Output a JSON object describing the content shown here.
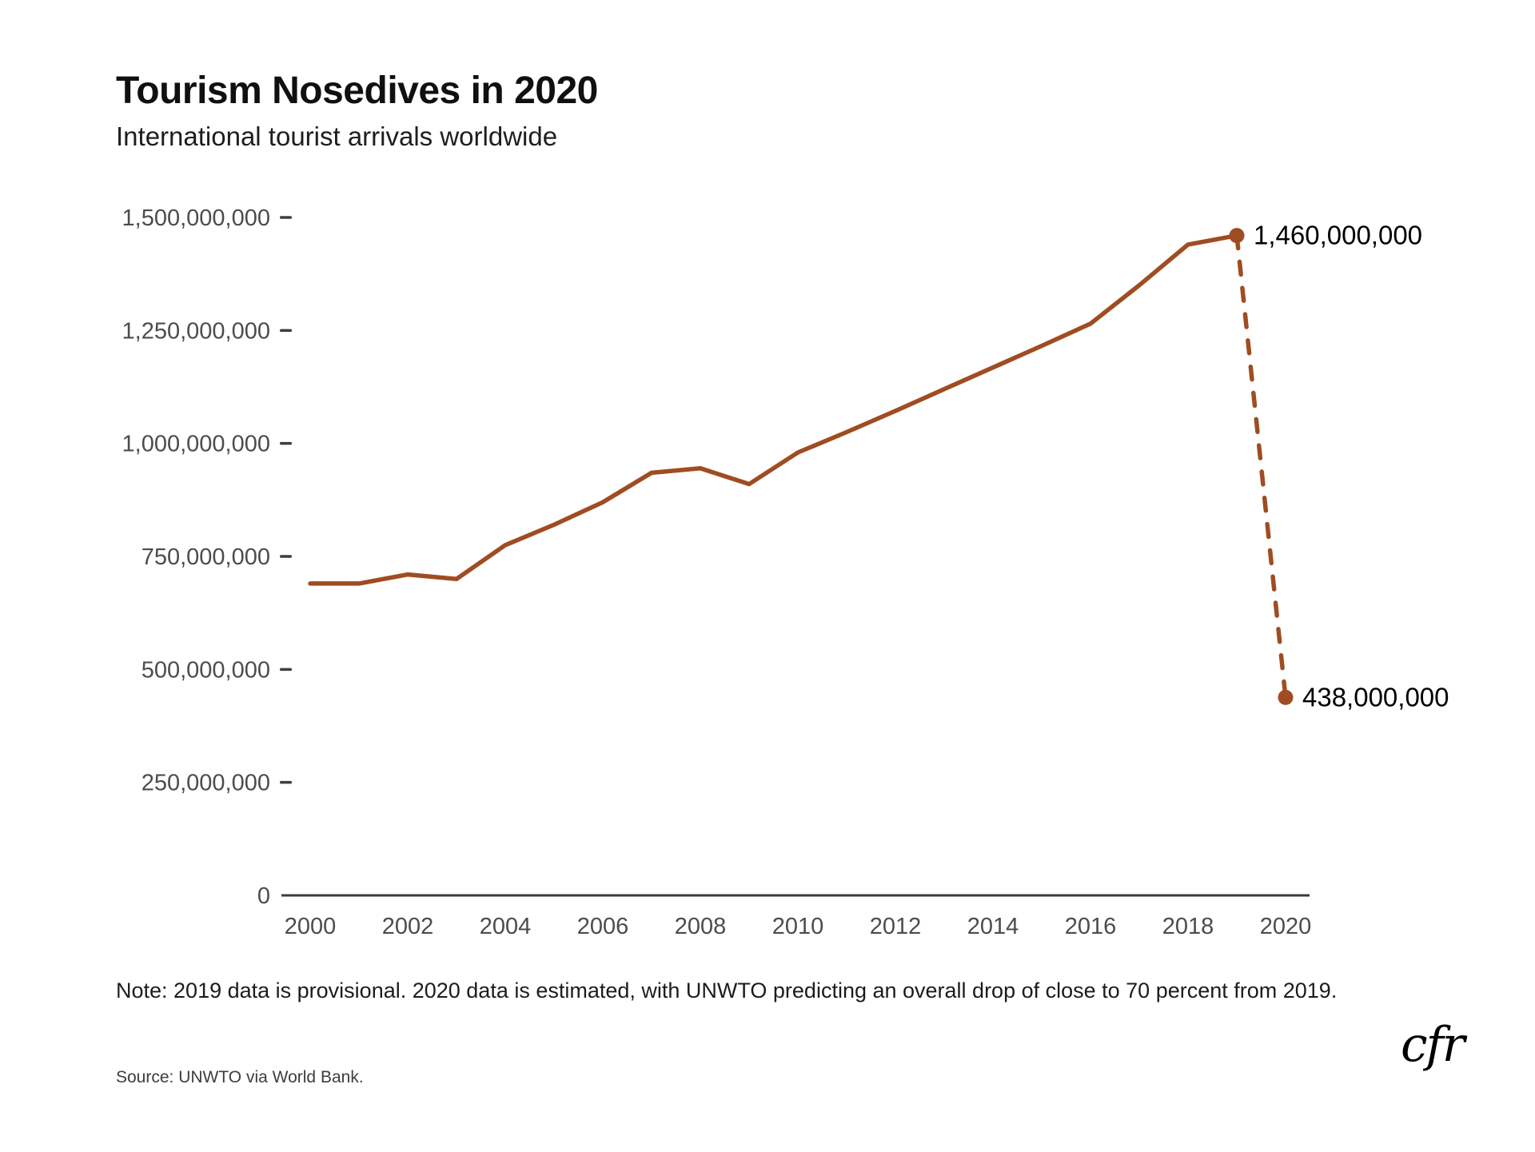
{
  "header": {
    "title": "Tourism Nosedives in 2020",
    "subtitle": "International tourist arrivals worldwide"
  },
  "chart_data": {
    "type": "line",
    "title": "Tourism Nosedives in 2020",
    "subtitle": "International tourist arrivals worldwide",
    "x": [
      2000,
      2001,
      2002,
      2003,
      2004,
      2005,
      2006,
      2007,
      2008,
      2009,
      2010,
      2011,
      2012,
      2013,
      2014,
      2015,
      2016,
      2017,
      2018,
      2019,
      2020
    ],
    "series": [
      {
        "name": "International tourist arrivals worldwide",
        "values": [
          690000000,
          690000000,
          710000000,
          700000000,
          775000000,
          820000000,
          870000000,
          935000000,
          945000000,
          910000000,
          980000000,
          1025000000,
          1072000000,
          1120000000,
          1168000000,
          1216000000,
          1265000000,
          1350000000,
          1440000000,
          1460000000,
          438000000
        ]
      }
    ],
    "solid_segment_years": [
      2000,
      2019
    ],
    "dashed_segment_years": [
      2019,
      2020
    ],
    "annotations": [
      {
        "year": 2019,
        "value": 1460000000,
        "label": "1,460,000,000"
      },
      {
        "year": 2020,
        "value": 438000000,
        "label": "438,000,000"
      }
    ],
    "y_ticks": [
      0,
      250000000,
      500000000,
      750000000,
      1000000000,
      1250000000,
      1500000000
    ],
    "y_tick_labels": [
      "0",
      "250,000,000",
      "500,000,000",
      "750,000,000",
      "1,000,000,000",
      "1,250,000,000",
      "1,500,000,000"
    ],
    "x_ticks": [
      2000,
      2002,
      2004,
      2006,
      2008,
      2010,
      2012,
      2014,
      2016,
      2018,
      2020
    ],
    "x_tick_labels": [
      "2000",
      "2002",
      "2004",
      "2006",
      "2008",
      "2010",
      "2012",
      "2014",
      "2016",
      "2018",
      "2020"
    ],
    "ylim": [
      0,
      1500000000
    ],
    "xlim": [
      2000,
      2020
    ],
    "grid": false,
    "legend_position": "none",
    "line_color": "#a04c22",
    "axis_color": "#3b3b3b",
    "tick_label_color": "#4c4c4c",
    "annotation_color": "#000000"
  },
  "footer": {
    "note": "Note: 2019 data is provisional. 2020 data is estimated, with UNWTO predicting an overall drop of close to 70 percent from 2019.",
    "source": "Source: UNWTO via World Bank.",
    "logo_text": "cfr"
  }
}
